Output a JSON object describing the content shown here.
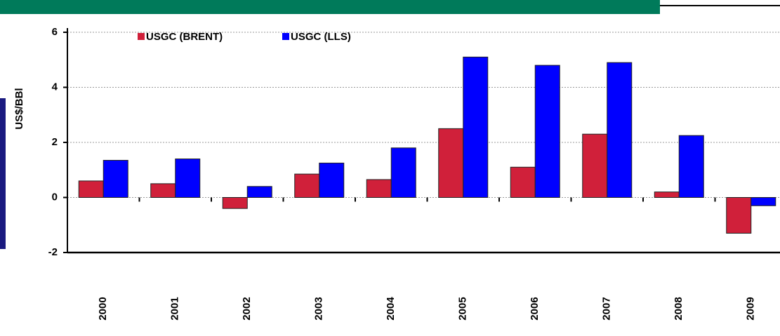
{
  "chart_data": {
    "type": "bar",
    "y_label": "US$/BBl",
    "categories": [
      "2000",
      "2001",
      "2002",
      "2003",
      "2004",
      "2005",
      "2006",
      "2007",
      "2008",
      "2009"
    ],
    "series": [
      {
        "name": "USGC (BRENT)",
        "color": "#d0203a",
        "values": [
          0.6,
          0.5,
          -0.4,
          0.85,
          0.65,
          2.5,
          1.1,
          2.3,
          0.2,
          -1.3
        ]
      },
      {
        "name": "USGC (LLS)",
        "color": "#0000ff",
        "values": [
          1.35,
          1.4,
          0.4,
          1.25,
          1.8,
          5.1,
          4.8,
          4.9,
          2.25,
          -0.3
        ]
      }
    ],
    "ylim": [
      -2,
      6
    ],
    "yticks": [
      -2,
      0,
      2,
      4,
      6
    ],
    "grid": true,
    "legend": "top-left"
  }
}
